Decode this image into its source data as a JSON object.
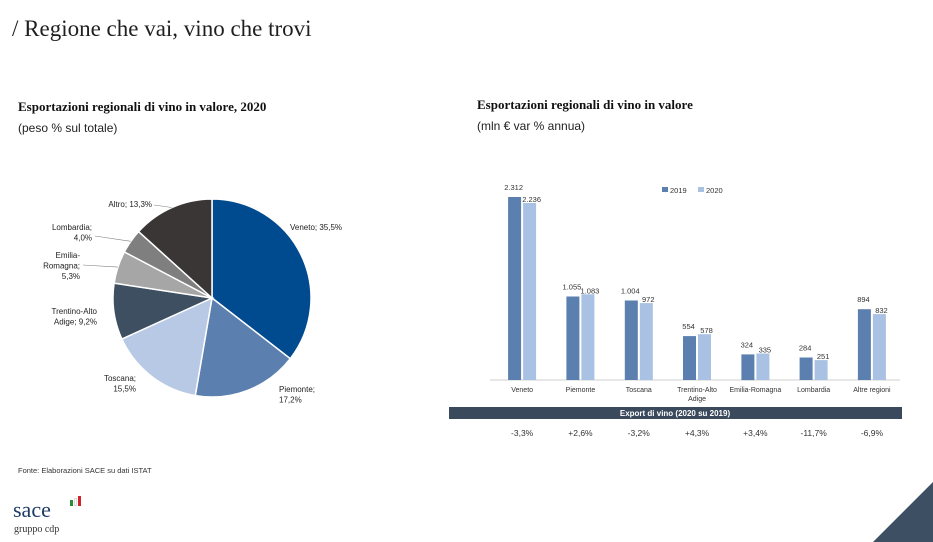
{
  "slide": {
    "title": "/ Regione che vai, vino che trovi"
  },
  "pie_panel": {
    "title": "Esportazioni regionali di vino in valore, 2020",
    "subtitle": "(peso % sul totale)"
  },
  "bar_panel": {
    "title": "Esportazioni regionali di vino in valore",
    "subtitle": "(mln € var % annua)",
    "table_header": "Export di vino (2020 su 2019)",
    "changes": [
      "-3,3%",
      "+2,6%",
      "-3,2%",
      "+4,3%",
      "+3,4%",
      "-11,7%",
      "-6,9%"
    ]
  },
  "footer": {
    "source": "Fonte: Elaborazioni SACE su dati ISTAT",
    "logo_text": "sace",
    "logo_sub": "gruppo cdp"
  },
  "colors": {
    "bar_2019": "#5b7fae",
    "bar_2020": "#a9c1e2",
    "table_header_bg": "#3a4a5c",
    "corner": "#3d4f63"
  },
  "chart_data": [
    {
      "type": "pie",
      "title": "Esportazioni regionali di vino in valore, 2020",
      "subtitle": "(peso % sul totale)",
      "slices": [
        {
          "label": "Veneto",
          "value": 35.5,
          "display": "35,5%",
          "color": "#004a8f"
        },
        {
          "label": "Piemonte",
          "value": 17.2,
          "display": "17,2%",
          "color": "#5b7fae"
        },
        {
          "label": "Toscana",
          "value": 15.5,
          "display": "15,5%",
          "color": "#b7c9e4"
        },
        {
          "label": "Trentino-Alto Adige",
          "value": 9.2,
          "display": "9,2%",
          "color": "#3e4f61"
        },
        {
          "label": "Emilia-Romagna",
          "value": 5.3,
          "display": "5,3%",
          "color": "#a6a6a6"
        },
        {
          "label": "Lombardia",
          "value": 4.0,
          "display": "4,0%",
          "color": "#7f7f7f"
        },
        {
          "label": "Altro",
          "value": 13.3,
          "display": "13,3%",
          "color": "#3b3636"
        }
      ]
    },
    {
      "type": "bar",
      "title": "Esportazioni regionali di vino in valore",
      "subtitle": "(mln € var % annua)",
      "categories": [
        "Veneto",
        "Piemonte",
        "Toscana",
        "Trentino-Alto Adige",
        "Emilia-Romagna",
        "Lombardia",
        "Altre regioni"
      ],
      "series": [
        {
          "name": "2019",
          "values": [
            2312,
            1055,
            1004,
            554,
            324,
            284,
            894
          ],
          "labels": [
            "2.312",
            "1.055",
            "1.004",
            "554",
            "324",
            "284",
            "894"
          ]
        },
        {
          "name": "2020",
          "values": [
            2236,
            1083,
            972,
            578,
            335,
            251,
            832
          ],
          "labels": [
            "2.236",
            "1.083",
            "972",
            "578",
            "335",
            "251",
            "832"
          ]
        }
      ],
      "ylim": [
        0,
        2400
      ],
      "legend": "top-right",
      "grid": false
    }
  ]
}
